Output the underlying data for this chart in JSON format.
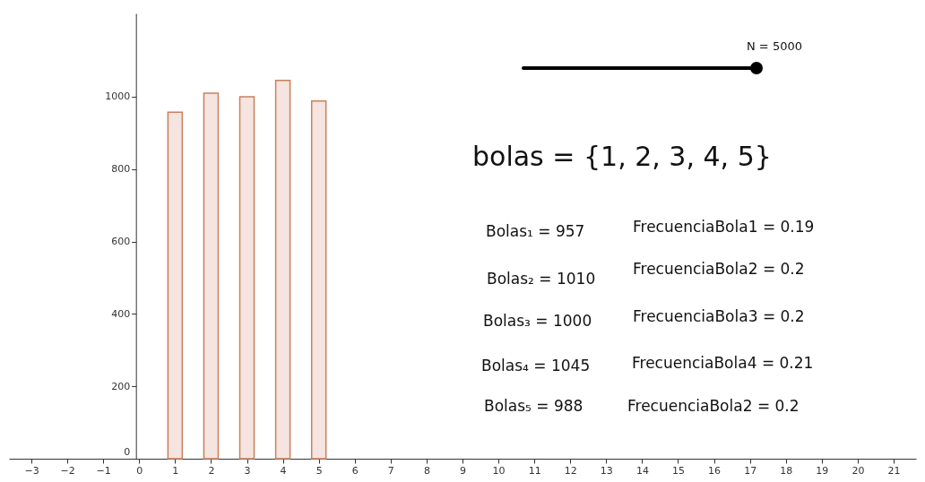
{
  "chart_data": {
    "type": "bar",
    "x": [
      1,
      2,
      3,
      4,
      5
    ],
    "series": [
      {
        "color": "#f5e4df",
        "values": [
          957,
          1010,
          1000,
          1045,
          988
        ]
      }
    ],
    "xlim": [
      -3.5,
      21.5
    ],
    "xticks": [
      -3,
      -2,
      -1,
      0,
      1,
      2,
      3,
      4,
      5,
      6,
      7,
      8,
      9,
      10,
      11,
      12,
      13,
      14,
      15,
      16,
      17,
      18,
      19,
      20,
      21
    ],
    "ylim": [
      0,
      1230
    ],
    "yticks": [
      0,
      200,
      400,
      600,
      800,
      1000
    ],
    "grid": false,
    "annotations": [
      "N = 5000",
      "bolas = {1, 2, 3, 4, 5}",
      "Bolas₁ = 957",
      "Bolas₂ = 1010",
      "Bolas₃ = 1000",
      "Bolas₄ = 1045",
      "Bolas₅ = 988",
      "FrecuenciaBola1 = 0.19",
      "FrecuenciaBola2 = 0.2",
      "FrecuenciaBola3 = 0.2",
      "FrecuenciaBola4 = 0.21",
      "FrecuenciaBola2 = 0.2"
    ]
  }
}
